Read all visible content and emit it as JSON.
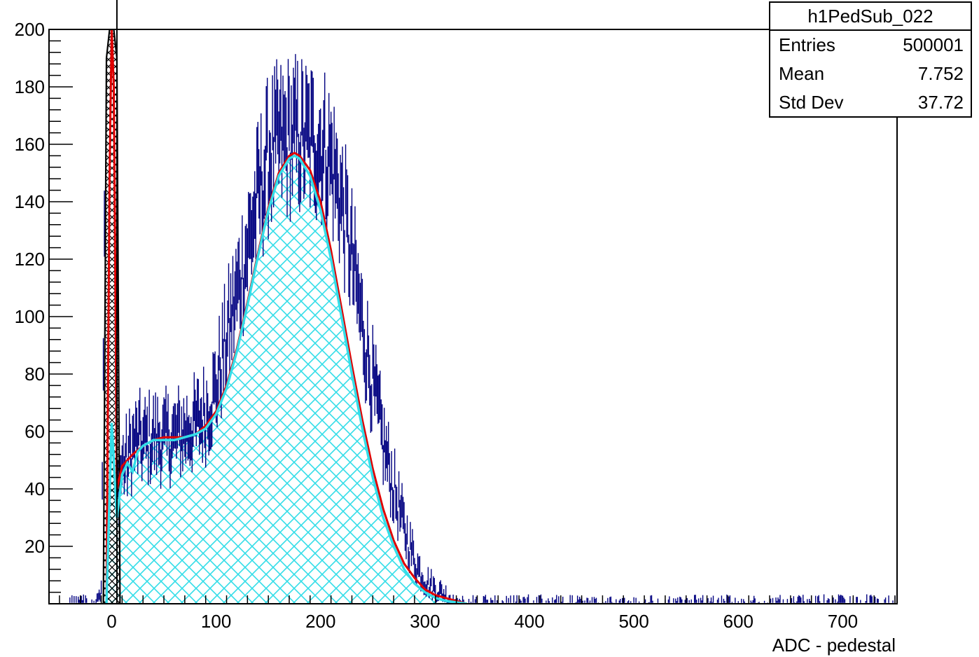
{
  "chart_data": {
    "type": "histogram",
    "title": "",
    "xlabel": "ADC - pedestal",
    "ylabel": "",
    "xlim": [
      -60,
      752
    ],
    "ylim": [
      0,
      200
    ],
    "xticks": [
      0,
      100,
      200,
      300,
      400,
      500,
      600,
      700
    ],
    "yticks": [
      20,
      40,
      60,
      80,
      100,
      120,
      140,
      160,
      180,
      200
    ],
    "grid": false,
    "legend": "none",
    "stats_box": {
      "title": "h1PedSub_022",
      "placement": "top-right",
      "rows": [
        {
          "label": "Entries",
          "value": "500001"
        },
        {
          "label": "Mean",
          "value": "7.752"
        },
        {
          "label": "Std Dev",
          "value": "37.72"
        }
      ]
    },
    "series": [
      {
        "type": "histogram",
        "color": "#000080",
        "x": [
          -40,
          -20,
          -10,
          -5,
          0,
          5,
          10,
          15,
          20,
          25,
          30,
          40,
          50,
          60,
          70,
          80,
          90,
          100,
          110,
          120,
          130,
          140,
          150,
          160,
          170,
          180,
          190,
          200,
          210,
          220,
          230,
          240,
          250,
          260,
          270,
          280,
          290,
          300,
          310,
          320,
          330,
          340,
          350,
          380,
          420,
          460,
          520,
          600,
          700,
          750
        ],
        "y": [
          1,
          2,
          4,
          200,
          200,
          38,
          48,
          50,
          55,
          57,
          56,
          58,
          57,
          58,
          60,
          62,
          66,
          75,
          92,
          108,
          124,
          141,
          155,
          160,
          162,
          162,
          161,
          160,
          154,
          140,
          120,
          97,
          76,
          56,
          40,
          26,
          15,
          8,
          5,
          3,
          2,
          1.5,
          1.2,
          1,
          0.8,
          0.6,
          0.5,
          0.4,
          0.3,
          0.2
        ]
      },
      {
        "type": "fit",
        "color": "#e00000",
        "x": [
          -5,
          -2,
          0,
          2,
          5,
          10,
          20,
          30,
          40,
          50,
          60,
          70,
          80,
          90,
          100,
          110,
          120,
          130,
          140,
          150,
          160,
          170,
          175,
          180,
          190,
          200,
          210,
          220,
          230,
          240,
          250,
          260,
          270,
          280,
          290,
          300,
          310,
          320,
          330,
          340
        ],
        "y": [
          0,
          150,
          200,
          180,
          40,
          48,
          52,
          55,
          57,
          58,
          58,
          58,
          59,
          62,
          67,
          76,
          89,
          105,
          122,
          138,
          150,
          156,
          157,
          156,
          151,
          140,
          123,
          103,
          83,
          64,
          47,
          33,
          22,
          14,
          9,
          5,
          3,
          2,
          1,
          0
        ]
      },
      {
        "type": "fit-hatched",
        "color": "#33dde8",
        "x": [
          -5,
          0,
          5,
          10,
          15,
          20,
          25,
          30,
          40,
          50,
          60,
          70,
          80,
          90,
          100,
          110,
          120,
          130,
          140,
          150,
          160,
          170,
          175,
          180,
          190,
          200,
          210,
          220,
          230,
          240,
          250,
          260,
          270,
          280,
          290,
          300,
          310,
          320,
          330,
          340
        ],
        "y": [
          0,
          63,
          30,
          45,
          49,
          46,
          53,
          55,
          57,
          57,
          57,
          58,
          59,
          61,
          66,
          75,
          88,
          104,
          121,
          137,
          149,
          155,
          156,
          155,
          149,
          137,
          120,
          100,
          80,
          61,
          44,
          30,
          20,
          12,
          7,
          4,
          2,
          1,
          0.5,
          0
        ]
      },
      {
        "type": "pedestal-hatched",
        "color": "#000000",
        "x": [
          -8,
          -5,
          -2,
          0,
          2,
          5,
          8
        ],
        "y": [
          0,
          190,
          200,
          200,
          200,
          190,
          0
        ]
      }
    ]
  }
}
